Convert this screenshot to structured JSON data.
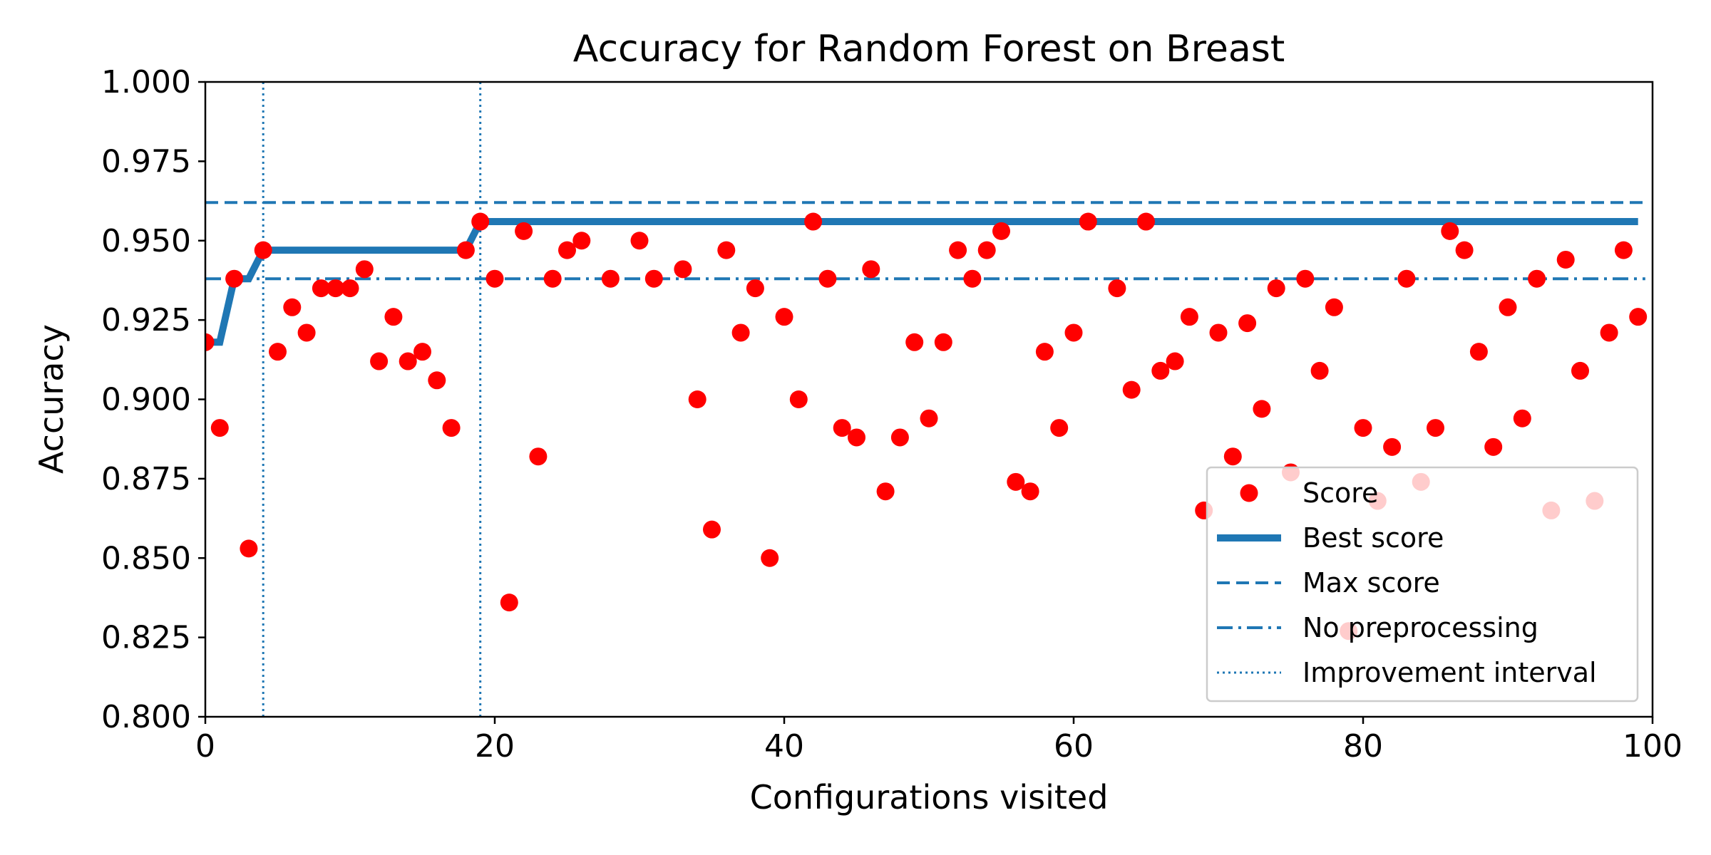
{
  "chart_data": {
    "type": "scatter",
    "title": "Accuracy for Random Forest on Breast",
    "xlabel": "Configurations visited",
    "ylabel": "Accuracy",
    "xlim": [
      0,
      100
    ],
    "ylim": [
      0.8,
      1.0
    ],
    "xticks": [
      "0",
      "20",
      "40",
      "60",
      "80",
      "100"
    ],
    "yticks": [
      "0.800",
      "0.825",
      "0.850",
      "0.875",
      "0.900",
      "0.925",
      "0.950",
      "0.975",
      "1.000"
    ],
    "grid": false,
    "legend_position": "bottom-right",
    "colors": {
      "score": "#ff0000",
      "line": "#1f77b4"
    },
    "series": [
      {
        "name": "Score",
        "kind": "points",
        "x": [
          0,
          1,
          2,
          3,
          4,
          5,
          6,
          7,
          8,
          9,
          10,
          11,
          12,
          13,
          14,
          15,
          16,
          17,
          18,
          19,
          20,
          21,
          22,
          23,
          24,
          25,
          26,
          28,
          30,
          31,
          33,
          34,
          35,
          36,
          37,
          38,
          39,
          40,
          41,
          42,
          43,
          44,
          45,
          46,
          47,
          48,
          49,
          50,
          51,
          52,
          53,
          54,
          55,
          56,
          57,
          58,
          59,
          60,
          61,
          63,
          64,
          65,
          66,
          67,
          68,
          69,
          70,
          71,
          72,
          73,
          74,
          75,
          76,
          77,
          78,
          79,
          80,
          81,
          82,
          83,
          84,
          85,
          86,
          87,
          88,
          89,
          90,
          91,
          92,
          93,
          94,
          95,
          96,
          97,
          98,
          99
        ],
        "y": [
          0.918,
          0.891,
          0.938,
          0.853,
          0.947,
          0.915,
          0.929,
          0.921,
          0.935,
          0.935,
          0.935,
          0.941,
          0.912,
          0.926,
          0.912,
          0.915,
          0.906,
          0.891,
          0.947,
          0.956,
          0.938,
          0.836,
          0.953,
          0.882,
          0.938,
          0.947,
          0.95,
          0.938,
          0.95,
          0.938,
          0.941,
          0.9,
          0.859,
          0.947,
          0.921,
          0.935,
          0.85,
          0.926,
          0.9,
          0.956,
          0.938,
          0.891,
          0.888,
          0.941,
          0.871,
          0.888,
          0.918,
          0.894,
          0.918,
          0.947,
          0.938,
          0.947,
          0.953,
          0.874,
          0.871,
          0.915,
          0.891,
          0.921,
          0.956,
          0.935,
          0.903,
          0.956,
          0.909,
          0.912,
          0.926,
          0.865,
          0.921,
          0.882,
          0.924,
          0.897,
          0.935,
          0.877,
          0.938,
          0.909,
          0.929,
          0.827,
          0.891,
          0.868,
          0.885,
          0.938,
          0.874,
          0.891,
          0.953,
          0.947,
          0.915,
          0.885,
          0.929,
          0.894,
          0.938,
          0.865,
          0.944,
          0.909,
          0.868,
          0.921,
          0.947,
          0.926
        ]
      },
      {
        "name": "Best score",
        "kind": "step",
        "x": [
          0,
          1,
          2,
          3,
          4,
          18,
          19,
          99
        ],
        "y": [
          0.918,
          0.918,
          0.938,
          0.938,
          0.947,
          0.947,
          0.956,
          0.956
        ]
      },
      {
        "name": "Max score",
        "kind": "hline",
        "y": 0.962
      },
      {
        "name": "No preprocessing",
        "kind": "hline",
        "y": 0.938
      },
      {
        "name": "Improvement interval",
        "kind": "vlines",
        "x": [
          4,
          19
        ]
      }
    ]
  }
}
